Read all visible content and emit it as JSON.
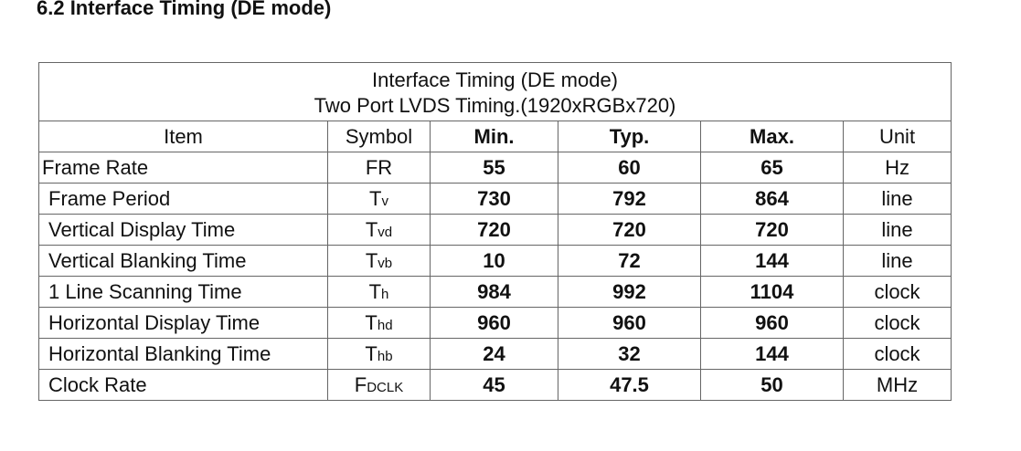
{
  "heading": "6.2 Interface Timing (DE mode)",
  "table": {
    "title": [
      "Interface Timing (DE mode)",
      "Two Port LVDS Timing.(1920xRGBx720)"
    ],
    "header": [
      "Item",
      "Symbol",
      "Min.",
      "Typ.",
      "Max.",
      "Unit"
    ],
    "rows": [
      {
        "item": "Frame Rate",
        "symbol": {
          "main": "FR"
        },
        "min": "55",
        "typ": "60",
        "max": "65",
        "unit": "Hz"
      },
      {
        "item": "Frame Period",
        "symbol": {
          "main": "T",
          "sub": "v"
        },
        "min": "730",
        "typ": "792",
        "max": "864",
        "unit": "line"
      },
      {
        "item": "Vertical Display Time",
        "symbol": {
          "main": "T",
          "sub": "vd"
        },
        "min": "720",
        "typ": "720",
        "max": "720",
        "unit": "line"
      },
      {
        "item": "Vertical Blanking Time",
        "symbol": {
          "main": "T",
          "sub": "vb"
        },
        "min": "10",
        "typ": "72",
        "max": "144",
        "unit": "line"
      },
      {
        "item": "1 Line Scanning Time",
        "symbol": {
          "main": "T",
          "sub": "h"
        },
        "min": "984",
        "typ": "992",
        "max": "1104",
        "unit": "clock"
      },
      {
        "item": "Horizontal Display Time",
        "symbol": {
          "main": "T",
          "sub": "hd"
        },
        "min": "960",
        "typ": "960",
        "max": "960",
        "unit": "clock"
      },
      {
        "item": "Horizontal Blanking Time",
        "symbol": {
          "main": "T",
          "sub": "hb"
        },
        "min": "24",
        "typ": "32",
        "max": "144",
        "unit": "clock"
      },
      {
        "item": "Clock Rate",
        "symbol": {
          "main": "F",
          "sub": "DCLK"
        },
        "min": "45",
        "typ": "47.5",
        "max": "50",
        "unit": "MHz"
      }
    ]
  }
}
